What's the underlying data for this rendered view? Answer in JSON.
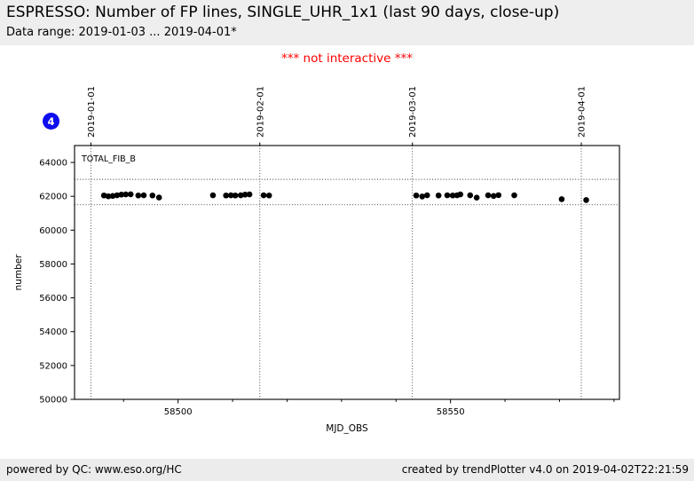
{
  "header": {
    "title": "ESPRESSO: Number of FP lines, SINGLE_UHR_1x1 (last 90 days, close-up)",
    "subtitle": "Data range: 2019-01-03 ... 2019-04-01*"
  },
  "banner": {
    "text": "*** not interactive ***",
    "color": "#ff0000"
  },
  "badge": {
    "label": "4",
    "color": "#0d0dee"
  },
  "footer": {
    "left": "powered by QC: www.eso.org/HC",
    "right": "created by trendPlotter v4.0 on 2019-04-02T22:21:59"
  },
  "chart_data": {
    "type": "scatter",
    "xlabel": "MJD_OBS",
    "ylabel": "number",
    "xlim": [
      58481,
      58581
    ],
    "ylim": [
      50000,
      65000
    ],
    "y_ticks": [
      50000,
      52000,
      54000,
      56000,
      58000,
      60000,
      62000,
      64000
    ],
    "x_major_ticks": [
      58500,
      58550
    ],
    "x_minor_ticks": [
      58490,
      58510,
      58520,
      58530,
      58540,
      58560,
      58570,
      58580
    ],
    "month_lines": [
      {
        "label": "2019-01-01",
        "mjd": 58484
      },
      {
        "label": "2019-02-01",
        "mjd": 58515
      },
      {
        "label": "2019-03-01",
        "mjd": 58543
      },
      {
        "label": "2019-04-01",
        "mjd": 58574
      }
    ],
    "threshold_lines": [
      63000,
      61500
    ],
    "threshold_style": "dotted",
    "grid": "off",
    "legend_label": "TOTAL_FIB_B",
    "legend_position": "top-left-inside",
    "marker": {
      "shape": "circle",
      "color": "#000000",
      "radius": 3.3
    },
    "series": [
      {
        "name": "TOTAL_FIB_B",
        "points": [
          [
            58486.4,
            62050
          ],
          [
            58487.2,
            62000
          ],
          [
            58488.0,
            62020
          ],
          [
            58488.8,
            62060
          ],
          [
            58489.6,
            62100
          ],
          [
            58490.4,
            62110
          ],
          [
            58491.3,
            62120
          ],
          [
            58492.7,
            62050
          ],
          [
            58493.7,
            62060
          ],
          [
            58495.3,
            62050
          ],
          [
            58496.5,
            61930
          ],
          [
            58506.4,
            62060
          ],
          [
            58508.8,
            62050
          ],
          [
            58509.7,
            62060
          ],
          [
            58510.5,
            62050
          ],
          [
            58511.5,
            62060
          ],
          [
            58512.3,
            62100
          ],
          [
            58513.1,
            62110
          ],
          [
            58515.7,
            62060
          ],
          [
            58516.7,
            62050
          ],
          [
            58543.7,
            62050
          ],
          [
            58544.8,
            61990
          ],
          [
            58545.7,
            62060
          ],
          [
            58547.8,
            62050
          ],
          [
            58549.4,
            62060
          ],
          [
            58550.4,
            62050
          ],
          [
            58551.2,
            62060
          ],
          [
            58551.8,
            62110
          ],
          [
            58553.6,
            62060
          ],
          [
            58554.8,
            61920
          ],
          [
            58556.9,
            62060
          ],
          [
            58557.9,
            62020
          ],
          [
            58558.8,
            62070
          ],
          [
            58561.7,
            62060
          ],
          [
            58570.4,
            61830
          ],
          [
            58574.9,
            61780
          ]
        ]
      }
    ]
  }
}
